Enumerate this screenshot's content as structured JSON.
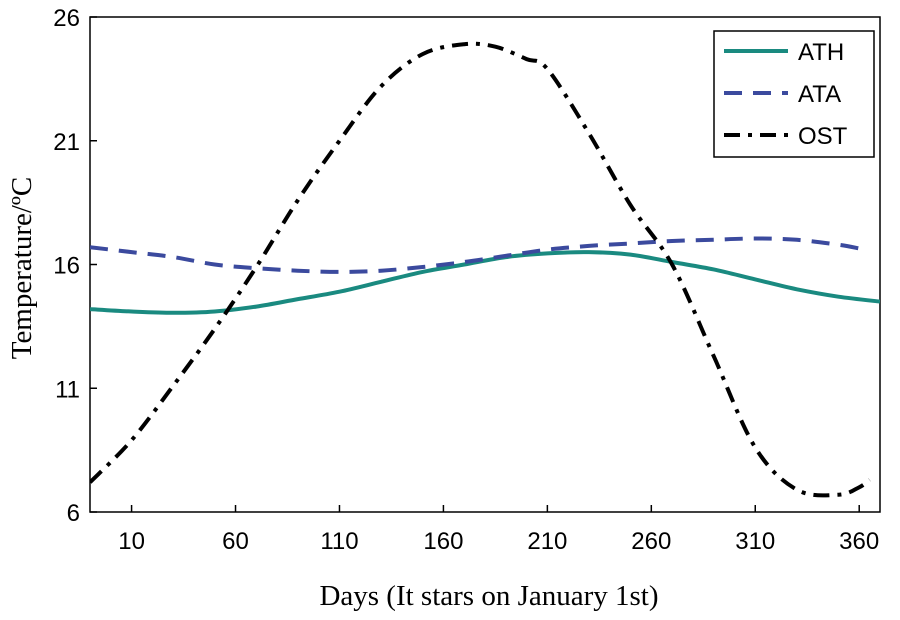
{
  "chart_data": {
    "type": "line",
    "xlabel": "Days (It stars on January 1st)",
    "ylabel": "Temperature/ºC",
    "xlim": [
      -10,
      370
    ],
    "ylim": [
      6,
      26
    ],
    "xticks": [
      10,
      60,
      110,
      160,
      210,
      260,
      310,
      360
    ],
    "yticks": [
      6,
      11,
      16,
      21,
      26
    ],
    "xtick_labels": [
      "10",
      "60",
      "110",
      "160",
      "210",
      "260",
      "310",
      "360"
    ],
    "ytick_labels": [
      "6",
      "11",
      "16",
      "21",
      "26"
    ],
    "grid": false,
    "legend_position": "top-right",
    "series": [
      {
        "name": "ATH",
        "color": "#1a8a80",
        "style": "solid",
        "x": [
          -10,
          10,
          30,
          50,
          70,
          90,
          110,
          130,
          150,
          170,
          190,
          210,
          230,
          250,
          270,
          290,
          310,
          330,
          350,
          370
        ],
        "y": [
          14.2,
          14.1,
          14.05,
          14.1,
          14.3,
          14.6,
          14.9,
          15.3,
          15.7,
          16.0,
          16.3,
          16.45,
          16.5,
          16.4,
          16.1,
          15.8,
          15.4,
          15.0,
          14.7,
          14.5
        ]
      },
      {
        "name": "ATA",
        "color": "#3b4a9e",
        "style": "dashed",
        "x": [
          -10,
          10,
          30,
          50,
          70,
          90,
          110,
          130,
          150,
          170,
          190,
          210,
          230,
          250,
          270,
          290,
          310,
          330,
          350,
          360
        ],
        "y": [
          16.7,
          16.5,
          16.3,
          16.0,
          15.85,
          15.75,
          15.7,
          15.75,
          15.9,
          16.1,
          16.35,
          16.6,
          16.75,
          16.85,
          16.95,
          17.0,
          17.05,
          17.0,
          16.8,
          16.65
        ]
      },
      {
        "name": "OST",
        "color": "#000000",
        "style": "dashdot",
        "x": [
          -10,
          10,
          30,
          50,
          70,
          90,
          110,
          130,
          150,
          170,
          185,
          200,
          210,
          230,
          250,
          270,
          290,
          310,
          330,
          350,
          360,
          365
        ],
        "y": [
          7.2,
          8.9,
          11.1,
          13.4,
          15.9,
          18.6,
          21.0,
          23.2,
          24.5,
          24.9,
          24.8,
          24.3,
          23.9,
          21.3,
          18.4,
          16.0,
          12.3,
          8.6,
          6.9,
          6.7,
          7.0,
          7.3
        ]
      }
    ]
  }
}
